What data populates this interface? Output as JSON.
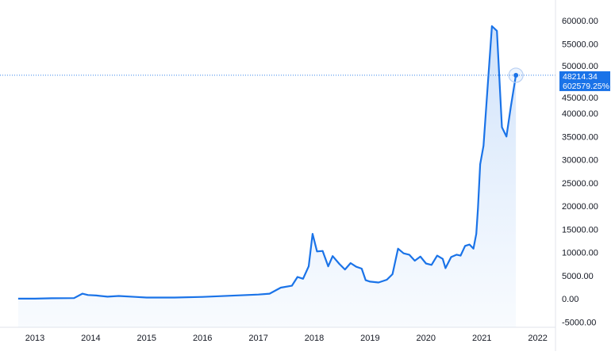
{
  "chart_data": {
    "type": "area",
    "title": "",
    "xlabel": "",
    "ylabel": "",
    "x_ticks": [
      "2013",
      "2014",
      "2015",
      "2016",
      "2017",
      "2018",
      "2019",
      "2020",
      "2021",
      "2022"
    ],
    "y_ticks": [
      "-5000.00",
      "0.00",
      "5000.00",
      "10000.00",
      "15000.00",
      "20000.00",
      "25000.00",
      "30000.00",
      "35000.00",
      "40000.00",
      "45000.00",
      "50000.00",
      "55000.00",
      "60000.00"
    ],
    "xlim": [
      2012.7,
      2022.3
    ],
    "ylim": [
      -5000,
      62000
    ],
    "grid": false,
    "line_color": "#1a73e8",
    "fill_color": "#dbe9fb",
    "series": [
      {
        "x": [
          2012.7,
          2013.0,
          2013.3,
          2013.7,
          2013.85,
          2013.95,
          2014.1,
          2014.3,
          2014.5,
          2014.8,
          2015.0,
          2015.5,
          2016.0,
          2016.5,
          2017.0,
          2017.2,
          2017.4,
          2017.6,
          2017.7,
          2017.8,
          2017.9,
          2017.97,
          2018.05,
          2018.15,
          2018.25,
          2018.33,
          2018.45,
          2018.55,
          2018.65,
          2018.75,
          2018.85,
          2018.92,
          2019.0,
          2019.15,
          2019.3,
          2019.4,
          2019.5,
          2019.6,
          2019.7,
          2019.8,
          2019.9,
          2020.0,
          2020.1,
          2020.2,
          2020.3,
          2020.35,
          2020.45,
          2020.55,
          2020.62,
          2020.7,
          2020.78,
          2020.85,
          2020.9,
          2020.93,
          2020.97,
          2021.03,
          2021.1,
          2021.18,
          2021.27,
          2021.36,
          2021.44,
          2021.52,
          2021.61
        ],
        "y": [
          10,
          13,
          100,
          130,
          1100,
          800,
          700,
          450,
          600,
          400,
          250,
          250,
          400,
          650,
          900,
          1100,
          2400,
          2800,
          4700,
          4300,
          7000,
          14000,
          10200,
          10300,
          7000,
          9200,
          7500,
          6300,
          7700,
          6900,
          6500,
          4000,
          3700,
          3500,
          4100,
          5300,
          10800,
          9800,
          9500,
          8200,
          9100,
          7600,
          7300,
          9300,
          8600,
          6600,
          9000,
          9500,
          9300,
          11400,
          11700,
          10800,
          14000,
          19500,
          29000,
          33000,
          45000,
          58800,
          57800,
          37000,
          35000,
          41500,
          48214.34
        ]
      }
    ],
    "last_value": {
      "price": "48214.34",
      "change": "602579.25%"
    },
    "label_color": "#1a73e8"
  }
}
